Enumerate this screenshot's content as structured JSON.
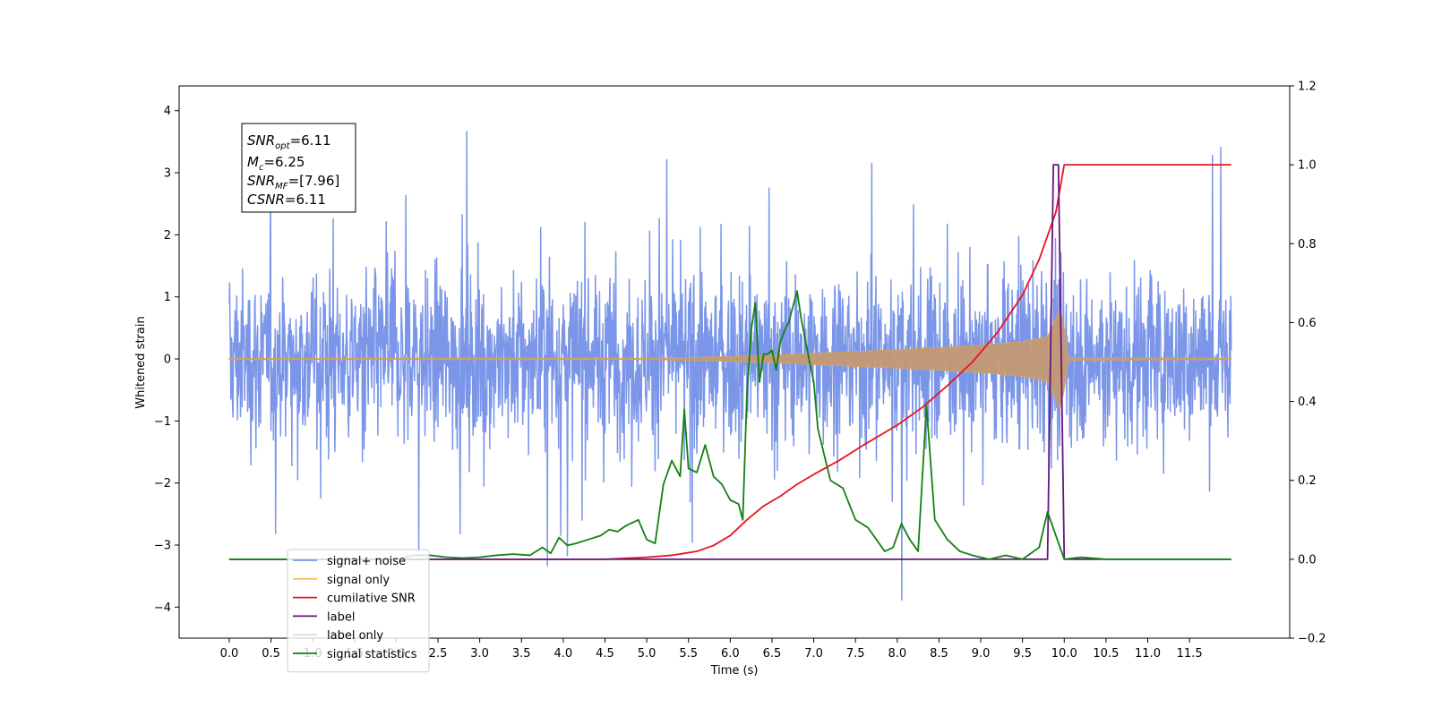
{
  "chart_data": {
    "type": "line",
    "xlabel": "Time (s)",
    "ylabel_left": "Whitened strain",
    "ylabel_right": "",
    "xlim": [
      -0.6,
      12.7
    ],
    "ylim_left": [
      -4.5,
      4.4
    ],
    "ylim_right": [
      -0.2,
      1.2
    ],
    "x_ticks": [
      "0.0",
      "0.5",
      "1.0",
      "1.5",
      "2.0",
      "2.5",
      "3.0",
      "3.5",
      "4.0",
      "4.5",
      "5.0",
      "5.5",
      "6.0",
      "6.5",
      "7.0",
      "7.5",
      "8.0",
      "8.5",
      "9.0",
      "9.5",
      "10.0",
      "10.5",
      "11.0",
      "11.5"
    ],
    "y_ticks_left": [
      "4",
      "3",
      "2",
      "1",
      "0",
      "−1",
      "−2",
      "−3",
      "−4"
    ],
    "y_ticks_right": [
      "1.2",
      "1.0",
      "0.8",
      "0.6",
      "0.4",
      "0.2",
      "0.0",
      "−0.2"
    ],
    "grid": false,
    "legend_position": "lower-left",
    "legend": [
      {
        "label": "signal+ noise",
        "color": "#7b96e8"
      },
      {
        "label": "signal only",
        "color": "#ffbe57"
      },
      {
        "label": "cumilative SNR",
        "color": "#e8141f"
      },
      {
        "label": "label",
        "color": "#6a1280"
      },
      {
        "label": "label only",
        "color": "#dddddd"
      },
      {
        "label": "signal statistics",
        "color": "#128012"
      }
    ],
    "annotation": {
      "snr_opt": {
        "symbol": "SNR",
        "sub": "opt",
        "value": "=6.11"
      },
      "mc": {
        "symbol": "M",
        "sub": "c",
        "value": "=6.25"
      },
      "snr_mf": {
        "symbol": "SNR",
        "sub": "MF",
        "value": "=[7.96]"
      },
      "csnr": {
        "symbol": "CSNR",
        "sub": "",
        "value": "=6.11"
      }
    },
    "series": [
      {
        "name": "signal+ noise",
        "axis": "left",
        "style": "noise band",
        "x_range": [
          0.0,
          12.0
        ],
        "amplitude_envelope": 2.9,
        "peak_range": [
          -4.1,
          4.0
        ]
      },
      {
        "name": "signal only",
        "axis": "left",
        "style": "chirp envelope",
        "x": [
          0.0,
          5.0,
          5.5,
          6.0,
          6.5,
          7.0,
          7.5,
          8.0,
          8.5,
          9.0,
          9.5,
          9.8,
          9.95,
          10.0,
          10.05,
          12.0
        ],
        "envelope": [
          0.01,
          0.01,
          0.02,
          0.04,
          0.06,
          0.09,
          0.12,
          0.15,
          0.18,
          0.22,
          0.28,
          0.36,
          0.8,
          0.5,
          0.02,
          0.01
        ]
      },
      {
        "name": "cumilative SNR",
        "axis": "right",
        "x": [
          0.0,
          4.5,
          5.0,
          5.3,
          5.6,
          5.8,
          6.0,
          6.2,
          6.4,
          6.6,
          6.8,
          7.0,
          7.3,
          7.6,
          8.0,
          8.3,
          8.6,
          8.9,
          9.2,
          9.5,
          9.7,
          9.9,
          10.0,
          12.0
        ],
        "values": [
          0.0,
          0.0,
          0.005,
          0.01,
          0.02,
          0.035,
          0.06,
          0.1,
          0.135,
          0.16,
          0.19,
          0.215,
          0.25,
          0.29,
          0.34,
          0.385,
          0.44,
          0.5,
          0.575,
          0.67,
          0.76,
          0.88,
          1.0,
          1.0
        ]
      },
      {
        "name": "label",
        "axis": "right",
        "x": [
          0.0,
          9.8,
          9.87,
          9.87,
          9.93,
          9.93,
          10.0,
          12.0
        ],
        "values": [
          0.0,
          0.0,
          1.0,
          1.0,
          1.0,
          1.0,
          0.0,
          0.0
        ]
      },
      {
        "name": "signal statistics",
        "axis": "right",
        "x": [
          0.0,
          2.0,
          2.2,
          2.4,
          2.6,
          2.8,
          3.0,
          3.2,
          3.4,
          3.6,
          3.75,
          3.85,
          3.95,
          4.05,
          4.15,
          4.3,
          4.45,
          4.55,
          4.65,
          4.75,
          4.9,
          5.0,
          5.1,
          5.2,
          5.3,
          5.4,
          5.45,
          5.5,
          5.6,
          5.7,
          5.8,
          5.9,
          6.0,
          6.1,
          6.15,
          6.2,
          6.25,
          6.3,
          6.35,
          6.4,
          6.45,
          6.5,
          6.55,
          6.6,
          6.65,
          6.7,
          6.8,
          6.85,
          6.95,
          7.0,
          7.05,
          7.2,
          7.35,
          7.5,
          7.65,
          7.75,
          7.85,
          7.95,
          8.05,
          8.15,
          8.25,
          8.35,
          8.45,
          8.6,
          8.75,
          8.9,
          9.1,
          9.3,
          9.5,
          9.6,
          9.7,
          9.8,
          9.9,
          10.0,
          10.2,
          10.5,
          12.0
        ],
        "values": [
          0.0,
          0.0,
          0.01,
          0.01,
          0.005,
          0.003,
          0.005,
          0.01,
          0.013,
          0.01,
          0.03,
          0.015,
          0.055,
          0.035,
          0.04,
          0.05,
          0.06,
          0.075,
          0.07,
          0.085,
          0.1,
          0.05,
          0.04,
          0.19,
          0.25,
          0.21,
          0.38,
          0.23,
          0.22,
          0.29,
          0.21,
          0.19,
          0.15,
          0.14,
          0.1,
          0.42,
          0.58,
          0.65,
          0.45,
          0.52,
          0.52,
          0.53,
          0.48,
          0.55,
          0.58,
          0.6,
          0.68,
          0.61,
          0.5,
          0.45,
          0.33,
          0.2,
          0.18,
          0.1,
          0.08,
          0.05,
          0.02,
          0.03,
          0.09,
          0.05,
          0.02,
          0.39,
          0.1,
          0.05,
          0.02,
          0.01,
          0.0,
          0.01,
          0.0,
          0.015,
          0.03,
          0.12,
          0.06,
          0.0,
          0.005,
          0.0,
          0.0
        ]
      }
    ]
  }
}
